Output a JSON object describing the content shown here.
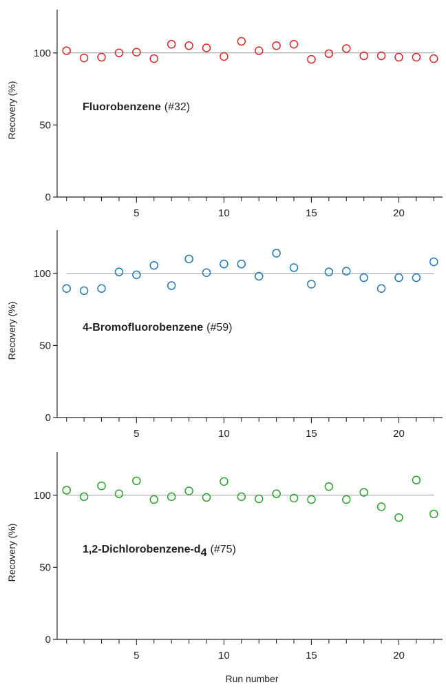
{
  "figure": {
    "xlabel": "Run number",
    "colors": {
      "axis": "#222222",
      "reference_line": "#999999"
    }
  },
  "chart_data": [
    {
      "type": "scatter",
      "title": "Fluorobenzene",
      "title_suffix": "(#32)",
      "subscript": "",
      "ylabel": "Recovery (%)",
      "xlim": [
        0.5,
        22.5
      ],
      "ylim": [
        0,
        130
      ],
      "xticks": [
        5,
        10,
        15,
        20
      ],
      "yticks": [
        0,
        50,
        100
      ],
      "reference_y": 100,
      "marker": "open-circle",
      "color": "#d62728",
      "x": [
        1,
        2,
        3,
        4,
        5,
        6,
        7,
        8,
        9,
        10,
        11,
        12,
        13,
        14,
        15,
        16,
        17,
        18,
        19,
        20,
        21,
        22
      ],
      "y": [
        101.5,
        96.5,
        97,
        100,
        100.5,
        96,
        106,
        105,
        103.5,
        97.5,
        108,
        101.5,
        105,
        106,
        95.5,
        99.5,
        103,
        98,
        98,
        97,
        97,
        96
      ]
    },
    {
      "type": "scatter",
      "title": "4-Bromofluorobenzene",
      "title_suffix": "(#59)",
      "subscript": "",
      "ylabel": "Recovery (%)",
      "xlim": [
        0.5,
        22.5
      ],
      "ylim": [
        0,
        130
      ],
      "xticks": [
        5,
        10,
        15,
        20
      ],
      "yticks": [
        0,
        50,
        100
      ],
      "reference_y": 100,
      "marker": "open-circle",
      "color": "#1f77b4",
      "x": [
        1,
        2,
        3,
        4,
        5,
        6,
        7,
        8,
        9,
        10,
        11,
        12,
        13,
        14,
        15,
        16,
        17,
        18,
        19,
        20,
        21,
        22
      ],
      "y": [
        89.5,
        88,
        89.5,
        101,
        99,
        105.5,
        91.5,
        110,
        100.5,
        106.5,
        106.5,
        98,
        114,
        104,
        92.5,
        101,
        101.5,
        97,
        89.5,
        97,
        97,
        108
      ]
    },
    {
      "type": "scatter",
      "title": "1,2-Dichlorobenzene-d",
      "title_suffix": "(#75)",
      "subscript": "4",
      "ylabel": "Recovery (%)",
      "xlim": [
        0.5,
        22.5
      ],
      "ylim": [
        0,
        130
      ],
      "xticks": [
        5,
        10,
        15,
        20
      ],
      "yticks": [
        0,
        50,
        100
      ],
      "reference_y": 100,
      "marker": "open-circle",
      "color": "#2ca02c",
      "x": [
        1,
        2,
        3,
        4,
        5,
        6,
        7,
        8,
        9,
        10,
        11,
        12,
        13,
        14,
        15,
        16,
        17,
        18,
        19,
        20,
        21,
        22
      ],
      "y": [
        103.5,
        99,
        106.5,
        101,
        110,
        97,
        99,
        103,
        98.5,
        109.5,
        99,
        97.5,
        101,
        98,
        97,
        106,
        97,
        102,
        92,
        84.5,
        110.5,
        87
      ]
    }
  ]
}
